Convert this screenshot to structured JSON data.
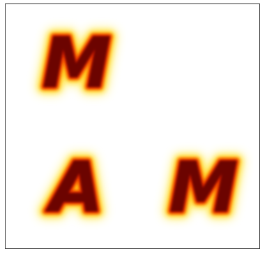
{
  "glyphs": [
    {
      "text": "M"
    },
    {
      "text": "A"
    },
    {
      "text": "M"
    }
  ]
}
